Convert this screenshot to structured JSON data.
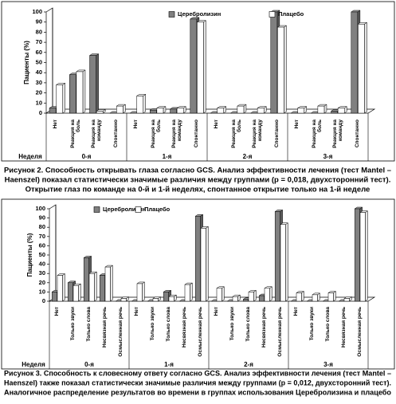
{
  "chart_data": [
    {
      "type": "bar",
      "legend": "top",
      "ylabel": "Пациенты (%)",
      "ylim": [
        0,
        100
      ],
      "yticks": [
        0,
        10,
        20,
        30,
        40,
        50,
        60,
        70,
        80,
        90,
        100
      ],
      "group_title": "Неделя",
      "groups": [
        "0-я",
        "1-я",
        "2-я",
        "3-я"
      ],
      "categories": [
        "Нет",
        "Реакция на боль",
        "Реакция на команду",
        "Спонтанно",
        "Нет",
        "Реакция на боль",
        "Реакция на команду",
        "Спонтанно",
        "Нет",
        "Реакция на боль",
        "Реакция на команду",
        "Спонтанно",
        "Нет",
        "Реакция на боль",
        "Реакция на команду",
        "Спонтанно"
      ],
      "series": [
        {
          "name": "Церебролизин",
          "color": "#808080",
          "values": [
            5,
            38,
            57,
            0,
            0,
            3,
            4,
            93,
            0,
            0,
            0,
            100,
            0,
            0,
            2,
            100
          ]
        },
        {
          "name": "Плацебо",
          "color": "#ffffff",
          "values": [
            28,
            41,
            2,
            7,
            17,
            5,
            5,
            90,
            5,
            7,
            5,
            85,
            5,
            7,
            5,
            88
          ]
        }
      ],
      "caption": [
        "Рисунок 2. Способность открывать глаза согласно GCS. Анализ эффективности лечения (тест Mantel –",
        "Haenszel) показал статистически значимые различия между группами (p = 0,018, двухсторонний тест).",
        "Открытие глаз по команде на 0-й и 1-й неделях, спонтанное открытие только на 1-й неделе"
      ]
    },
    {
      "type": "bar",
      "legend": "top",
      "ylabel": "Пациенты (%)",
      "ylim": [
        0,
        100
      ],
      "yticks": [
        0,
        10,
        20,
        30,
        40,
        50,
        60,
        70,
        80,
        90,
        100
      ],
      "group_title": "Неделя",
      "groups": [
        "0-я",
        "1-я",
        "2-я",
        "3-я"
      ],
      "categories": [
        "Нет",
        "Только звуки",
        "Только слова",
        "Несвязная речь",
        "Осмысленная речь",
        "Нет",
        "Только звуки",
        "Только слова",
        "Несвязная речь",
        "Осмысленная речь",
        "Нет",
        "Только звуки",
        "Только слова",
        "Несвязная речь",
        "Осмысленная речь",
        "Нет",
        "Только звуки",
        "Только слова",
        "Несвязная речь",
        "Осмысленная речь"
      ],
      "series": [
        {
          "name": "Церебролизин",
          "color": "#808080",
          "values": [
            10,
            20,
            47,
            28,
            0,
            0,
            0,
            10,
            0,
            92,
            0,
            0,
            2,
            6,
            97,
            0,
            0,
            0,
            0,
            100
          ]
        },
        {
          "name": "Плацебо",
          "color": "#ffffff",
          "values": [
            28,
            17,
            30,
            37,
            3,
            19,
            3,
            5,
            18,
            79,
            14,
            5,
            10,
            14,
            83,
            9,
            7,
            9,
            3,
            96
          ]
        }
      ],
      "caption": [
        "Рисунок 3. Способность к словесному ответу согласно GCS. Анализ эффективности лечения (тест Mantel –",
        "Haenszel) также показал статистически значимые различия между группами (p = 0,012, двухсторонний тест).",
        "Аналогичное распределение результатов во времени в группах использования Церебролизина и плацебо"
      ]
    }
  ]
}
